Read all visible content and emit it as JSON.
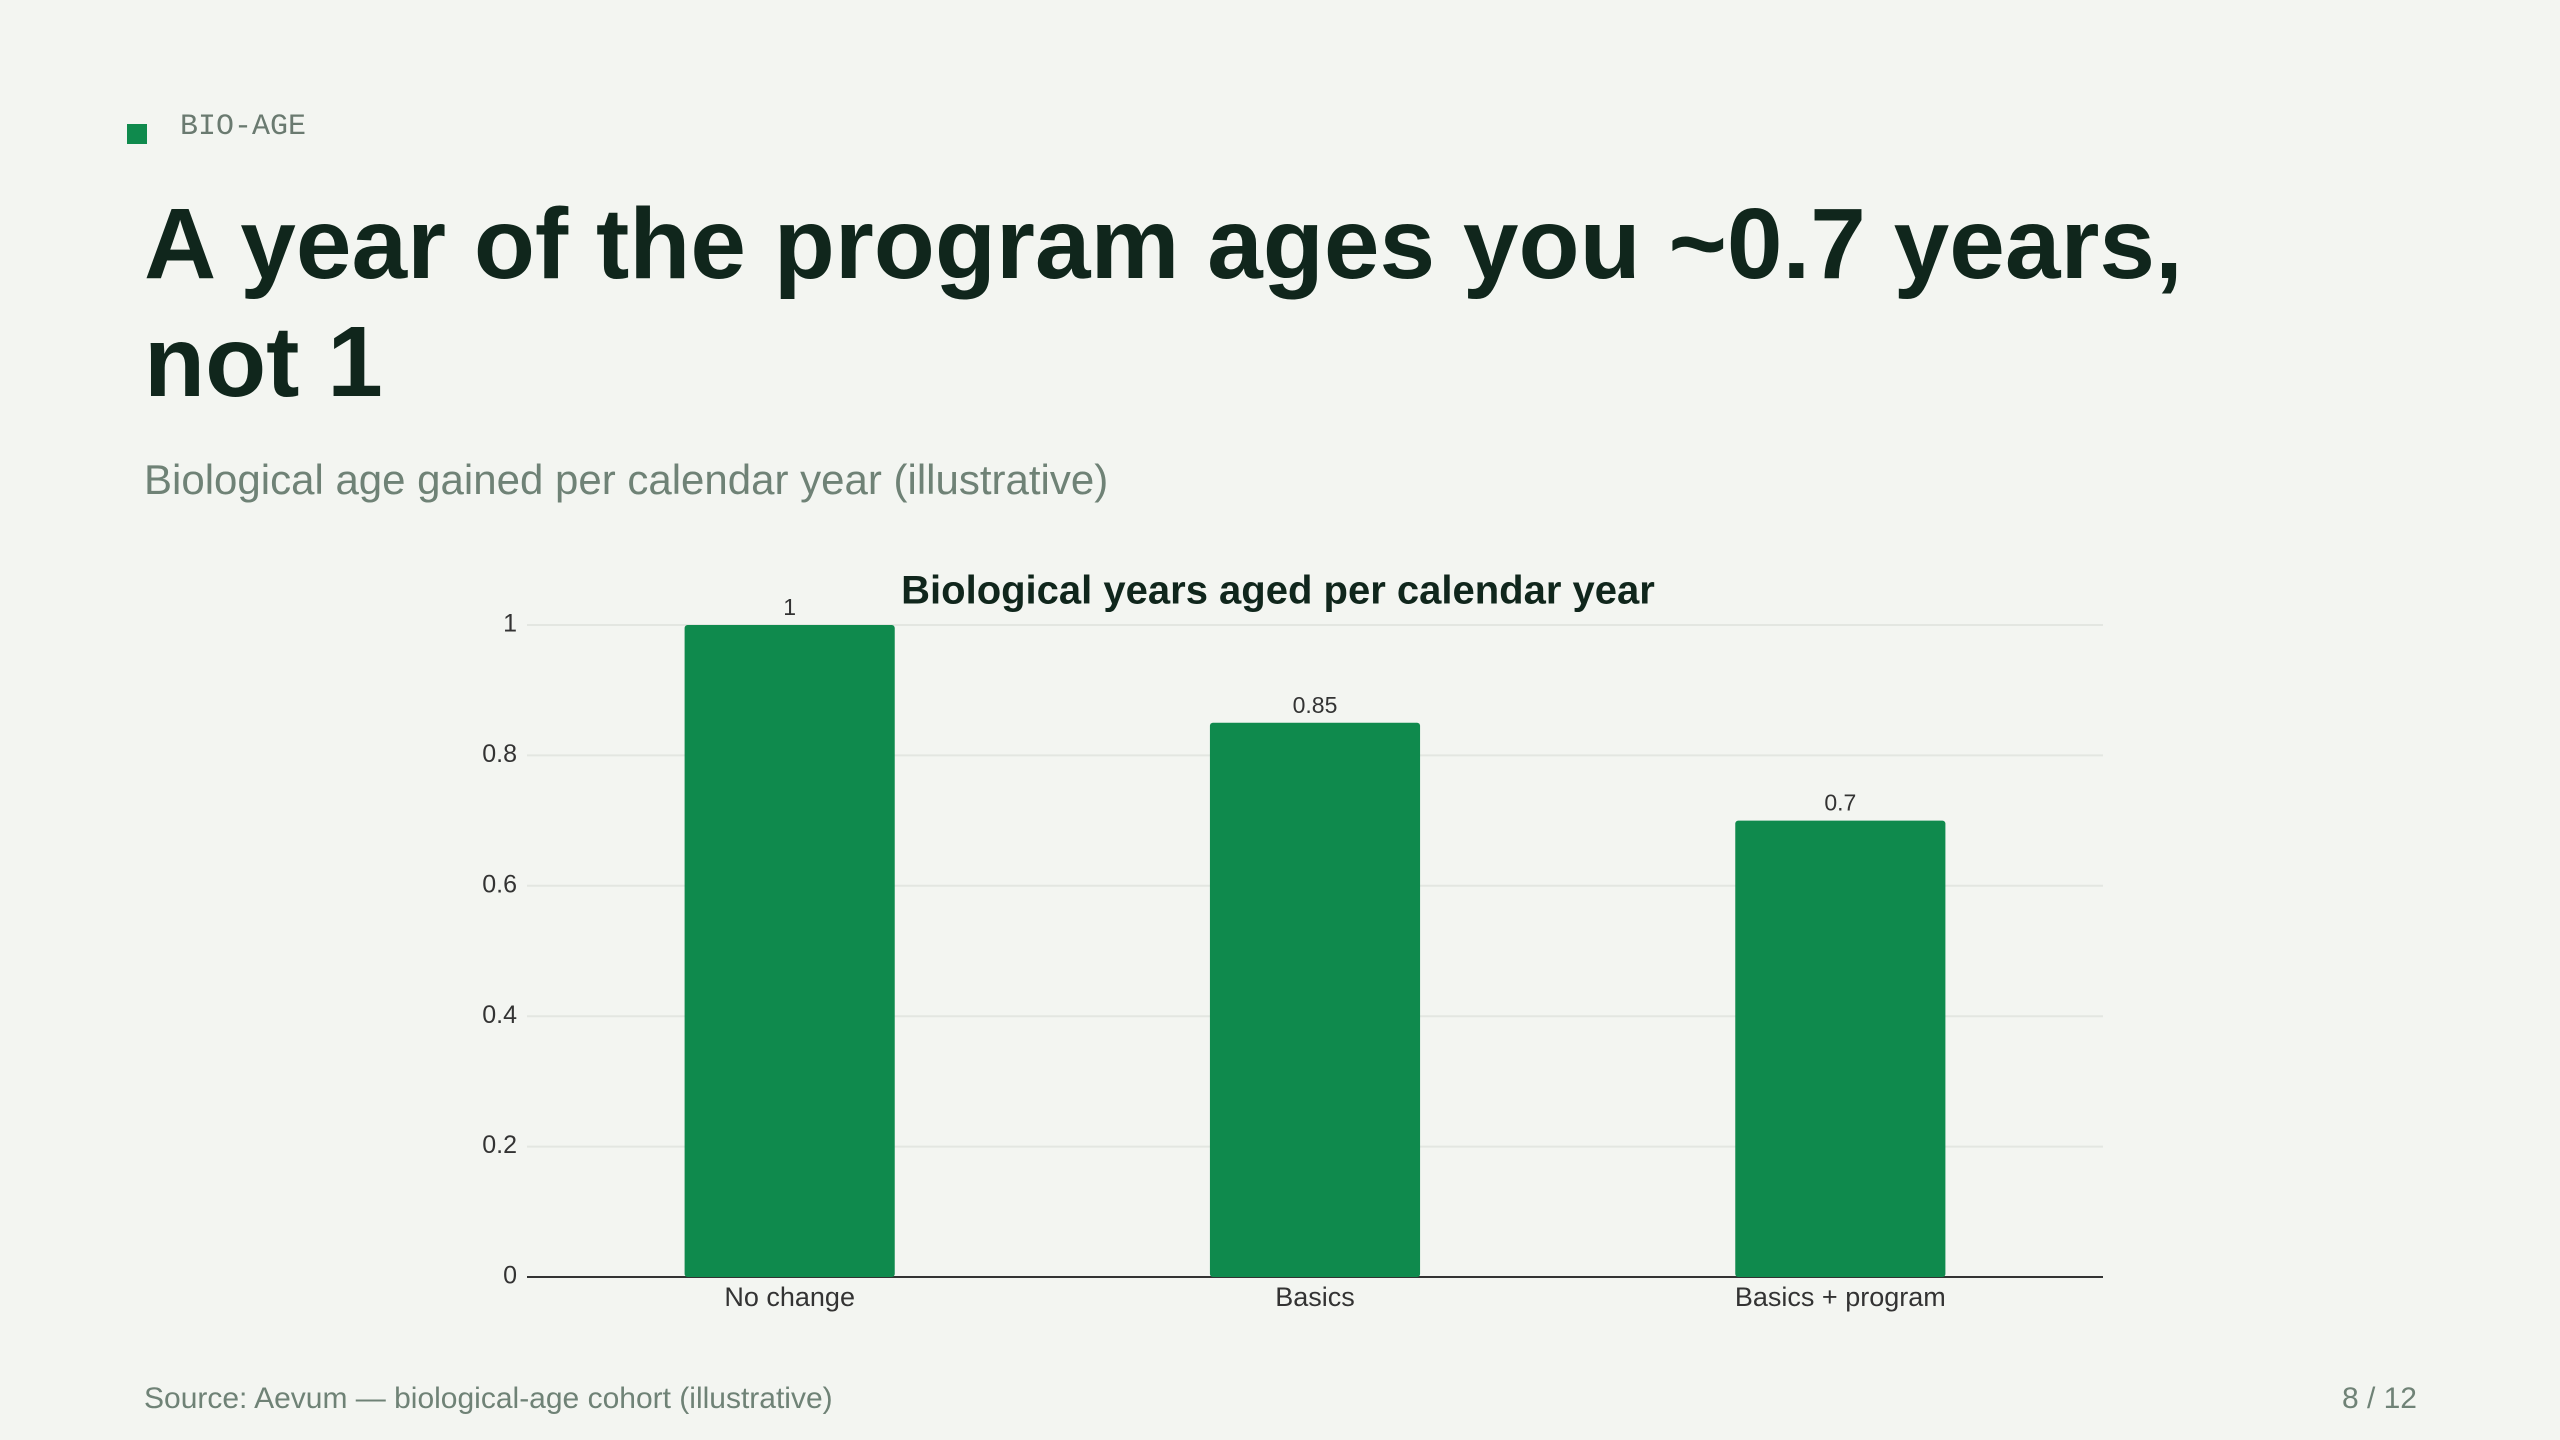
{
  "tag": "BIO-AGE",
  "title": "A year of the program ages you ~0.7 years, not 1",
  "subtitle": "Biological age gained per calendar year (illustrative)",
  "chart_data": {
    "type": "bar",
    "title": "Biological years aged per calendar year",
    "categories": [
      "No change",
      "Basics",
      "Basics + program"
    ],
    "values": [
      1,
      0.85,
      0.7
    ],
    "color": "#0f8a4d",
    "ylim": [
      0,
      1
    ],
    "yticks": [
      0,
      0.2,
      0.4,
      0.6,
      0.8,
      1
    ],
    "grid": true
  },
  "footer": {
    "source": "Source: Aevum — biological-age cohort (illustrative)",
    "page": "8 / 12"
  }
}
